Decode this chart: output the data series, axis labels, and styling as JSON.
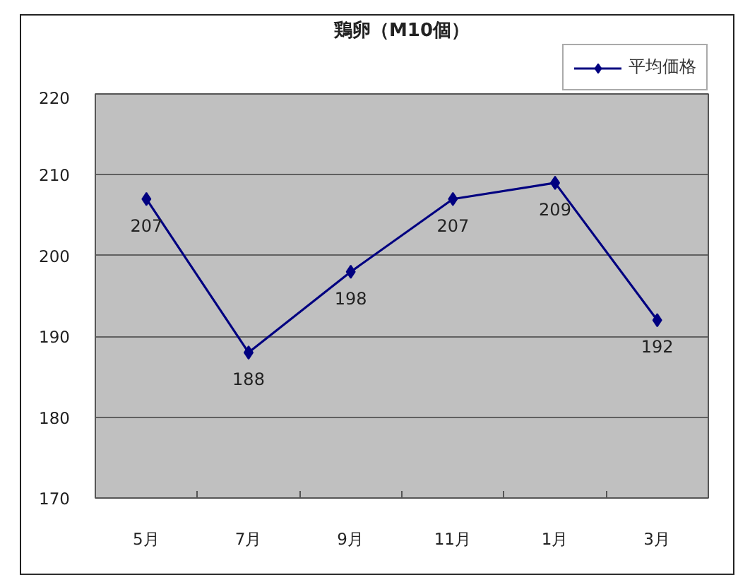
{
  "chart_data": {
    "type": "line",
    "title": "鶏卵（M10個）",
    "categories": [
      "5月",
      "7月",
      "9月",
      "11月",
      "1月",
      "3月"
    ],
    "series": [
      {
        "name": "平均価格",
        "color": "#000080",
        "values": [
          207,
          188,
          198,
          207,
          209,
          192
        ]
      }
    ],
    "ylim": [
      170,
      220
    ],
    "yticks": [
      170,
      180,
      190,
      200,
      210,
      220
    ],
    "grid": "y",
    "legend": "top right",
    "marker": "diamond",
    "line_style": "solid",
    "data_labels": true
  }
}
